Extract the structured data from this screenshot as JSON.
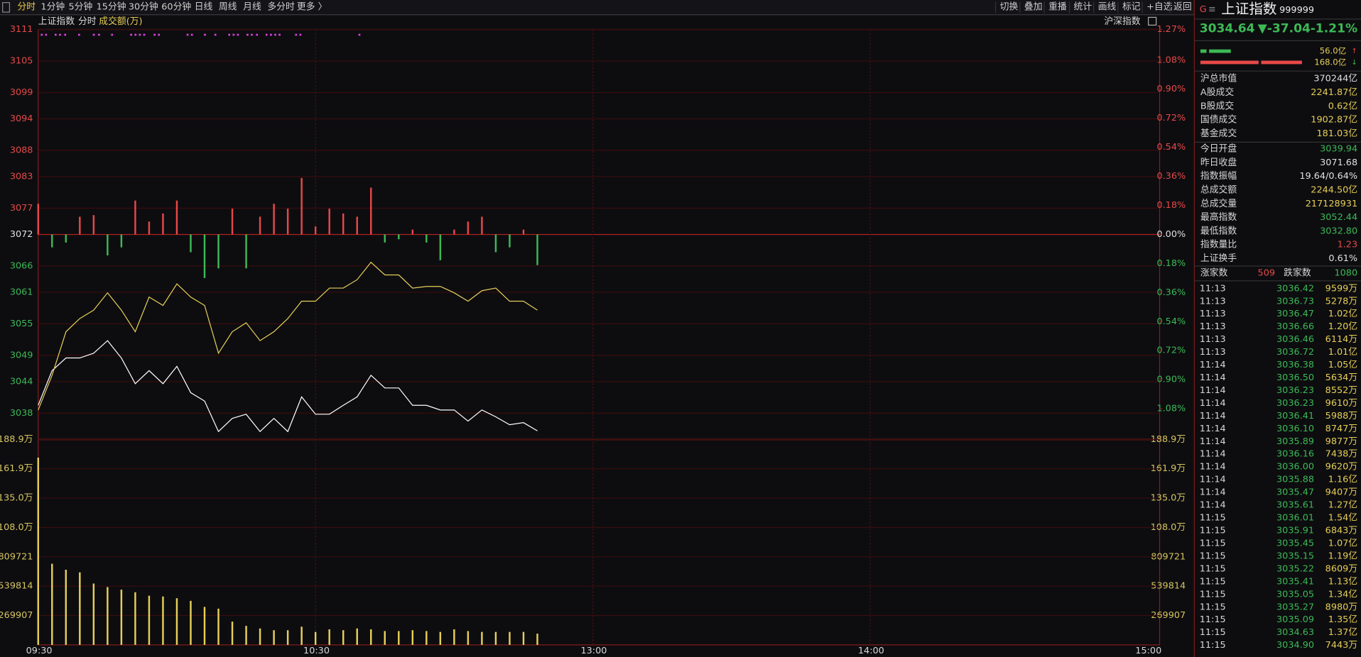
{
  "toolbar": {
    "periods": [
      "分时",
      "1分钟",
      "5分钟",
      "15分钟",
      "30分钟",
      "60分钟",
      "日线",
      "周线",
      "月线",
      "多分时",
      "更多 〉"
    ],
    "actions": [
      "切换",
      "叠加",
      "重播",
      "统计",
      "画线",
      "标记",
      "+自选",
      "返回"
    ]
  },
  "chart_data": [
    {
      "type": "line",
      "title": "上证指数",
      "subtitle": "分时",
      "annotations": [
        "沪深指数"
      ],
      "x": [
        0,
        3,
        6,
        9,
        12,
        15,
        18,
        21,
        24,
        27,
        30,
        33,
        36,
        39,
        42,
        45,
        48,
        51,
        54,
        57,
        60,
        63,
        66,
        69,
        72,
        75,
        78,
        81,
        84,
        87,
        90,
        93,
        96,
        99,
        102,
        105,
        108
      ],
      "xlim": [
        0,
        240
      ],
      "ylim": [
        3033,
        3111
      ],
      "yticks": [
        3111,
        3105,
        3099,
        3094,
        3088,
        3083,
        3077,
        3072,
        3066,
        3061,
        3055,
        3049,
        3044,
        3038
      ],
      "y2lim": [
        -1.27,
        1.27
      ],
      "y2ticks": [
        {
          "value": 1.27,
          "label": "1.27%"
        },
        {
          "value": 1.08,
          "label": "1.08%"
        },
        {
          "value": 0.9,
          "label": "0.90%"
        },
        {
          "value": 0.72,
          "label": "0.72%"
        },
        {
          "value": 0.54,
          "label": "0.54%"
        },
        {
          "value": 0.36,
          "label": "0.36%"
        },
        {
          "value": 0.18,
          "label": "0.18%"
        },
        {
          "value": 0,
          "label": "0.00%"
        },
        {
          "value": -0.18,
          "label": "0.18%"
        },
        {
          "value": -0.36,
          "label": "0.36%"
        },
        {
          "value": -0.54,
          "label": "0.54%"
        },
        {
          "value": -0.72,
          "label": "0.72%"
        },
        {
          "value": -0.9,
          "label": "0.90%"
        },
        {
          "value": -1.08,
          "label": "1.08%"
        }
      ],
      "grid": true,
      "series": [
        {
          "color": "#ffffff",
          "values": [
            3039.5,
            3046.1,
            3048.5,
            3048.5,
            3049.4,
            3051.8,
            3048.5,
            3043.6,
            3046.1,
            3043.6,
            3046.9,
            3041.9,
            3040.3,
            3034.5,
            3037.0,
            3037.8,
            3034.5,
            3037.0,
            3034.5,
            3041.1,
            3037.8,
            3037.8,
            3039.5,
            3041.1,
            3045.2,
            3042.8,
            3042.8,
            3039.5,
            3039.5,
            3038.6,
            3038.6,
            3036.5,
            3038.6,
            3037.3,
            3035.8,
            3036.2,
            3034.64
          ]
        },
        {
          "color": "#e6cf58",
          "values": [
            3038.6,
            3045.2,
            3053.5,
            3056.0,
            3057.6,
            3060.9,
            3057.6,
            3053.5,
            3060.1,
            3058.5,
            3062.6,
            3060.1,
            3058.5,
            3049.4,
            3053.5,
            3055.2,
            3051.8,
            3053.5,
            3056.0,
            3059.3,
            3059.3,
            3061.8,
            3061.8,
            3063.4,
            3066.7,
            3064.3,
            3064.3,
            3061.8,
            3062.1,
            3062.1,
            3060.9,
            3059.3,
            3061.3,
            3061.8,
            3059.3,
            3059.3,
            3057.6
          ]
        },
        {
          "type": "bar",
          "axis": "y2",
          "color": "#e84848",
          "color_down": "#3cba55",
          "values": [
            0.19,
            -0.08,
            -0.05,
            0.11,
            0.12,
            -0.13,
            -0.08,
            0.21,
            0.08,
            0.13,
            0.21,
            -0.11,
            -0.27,
            -0.21,
            0.16,
            -0.21,
            0.11,
            0.19,
            0.16,
            0.35,
            0.05,
            0.16,
            0.13,
            0.11,
            0.29,
            -0.05,
            -0.03,
            0.03,
            -0.05,
            -0.16,
            0.03,
            0.08,
            0.11,
            -0.11,
            -0.08,
            0.03,
            -0.19
          ]
        }
      ]
    },
    {
      "type": "bar",
      "title": "成交额(万)",
      "x": [
        0,
        3,
        6,
        9,
        12,
        15,
        18,
        21,
        24,
        27,
        30,
        33,
        36,
        39,
        42,
        45,
        48,
        51,
        54,
        57,
        60,
        63,
        66,
        69,
        72,
        75,
        78,
        81,
        84,
        87,
        90,
        93,
        96,
        99,
        102,
        105,
        108
      ],
      "xlim": [
        0,
        240
      ],
      "xticks": [
        {
          "value": 0,
          "label": "09:30"
        },
        {
          "value": 60,
          "label": "10:30"
        },
        {
          "value": 120,
          "label": "13:00"
        },
        {
          "value": 180,
          "label": "14:00"
        },
        {
          "value": 240,
          "label": "15:00"
        }
      ],
      "ylim": [
        0,
        1889349
      ],
      "yticks": [
        {
          "value": 1889349,
          "label": "188.9万"
        },
        {
          "value": 1619442,
          "label": "161.9万"
        },
        {
          "value": 1349535,
          "label": "135.0万"
        },
        {
          "value": 1079628,
          "label": "108.0万"
        },
        809721,
        539814,
        269907
      ],
      "grid": true,
      "series": [
        {
          "color": "#e6cf58",
          "values": [
            1722000,
            746000,
            691000,
            667000,
            564000,
            532000,
            508000,
            484000,
            452000,
            445000,
            429000,
            405000,
            349000,
            333000,
            214000,
            175000,
            151000,
            135000,
            135000,
            167000,
            119000,
            143000,
            135000,
            151000,
            143000,
            127000,
            127000,
            135000,
            127000,
            119000,
            143000,
            127000,
            119000,
            119000,
            119000,
            119000,
            103000
          ]
        }
      ]
    }
  ],
  "quote": {
    "flag": "G",
    "name": "上证指数",
    "code": "999999",
    "price": "3034.64",
    "change": "▼-37.04",
    "change_pct": "-1.21%",
    "buy_amount": "56.0亿",
    "sell_amount": "168.0亿"
  },
  "stats": [
    {
      "label": "沪总市值",
      "value": "370244亿"
    },
    {
      "label": "A股成交",
      "value": "2241.87亿"
    },
    {
      "label": "B股成交",
      "value": "0.62亿"
    },
    {
      "label": "国债成交",
      "value": "1902.87亿"
    },
    {
      "label": "基金成交",
      "value": "181.03亿"
    },
    {
      "label": "今日开盘",
      "value": "3039.94"
    },
    {
      "label": "昨日收盘",
      "value": "3071.68"
    },
    {
      "label": "指数振幅",
      "value": "19.64/0.64%"
    },
    {
      "label": "总成交额",
      "value": "2244.50亿"
    },
    {
      "label": "总成交量",
      "value": "217128931"
    },
    {
      "label": "最高指数",
      "value": "3052.44"
    },
    {
      "label": "最低指数",
      "value": "3032.80"
    },
    {
      "label": "指数量比",
      "value": "1.23"
    },
    {
      "label": "上证换手",
      "value": "0.61%"
    }
  ],
  "breadth": {
    "up_label": "涨家数",
    "up": "509",
    "down_label": "跌家数",
    "down": "1080"
  },
  "trades": [
    [
      "11:13",
      "3036.42",
      "9599万"
    ],
    [
      "11:13",
      "3036.73",
      "5278万"
    ],
    [
      "11:13",
      "3036.47",
      "1.02亿"
    ],
    [
      "11:13",
      "3036.66",
      "1.20亿"
    ],
    [
      "11:13",
      "3036.46",
      "6114万"
    ],
    [
      "11:13",
      "3036.72",
      "1.01亿"
    ],
    [
      "11:14",
      "3036.38",
      "1.05亿"
    ],
    [
      "11:14",
      "3036.50",
      "5634万"
    ],
    [
      "11:14",
      "3036.23",
      "8552万"
    ],
    [
      "11:14",
      "3036.23",
      "9610万"
    ],
    [
      "11:14",
      "3036.41",
      "5988万"
    ],
    [
      "11:14",
      "3036.10",
      "8747万"
    ],
    [
      "11:14",
      "3035.89",
      "9877万"
    ],
    [
      "11:14",
      "3036.16",
      "7438万"
    ],
    [
      "11:14",
      "3036.00",
      "9620万"
    ],
    [
      "11:14",
      "3035.88",
      "1.16亿"
    ],
    [
      "11:14",
      "3035.47",
      "9407万"
    ],
    [
      "11:14",
      "3035.61",
      "1.27亿"
    ],
    [
      "11:15",
      "3036.01",
      "1.54亿"
    ],
    [
      "11:15",
      "3035.91",
      "6843万"
    ],
    [
      "11:15",
      "3035.45",
      "1.07亿"
    ],
    [
      "11:15",
      "3035.15",
      "1.19亿"
    ],
    [
      "11:15",
      "3035.22",
      "8609万"
    ],
    [
      "11:15",
      "3035.41",
      "1.13亿"
    ],
    [
      "11:15",
      "3035.05",
      "1.34亿"
    ],
    [
      "11:15",
      "3035.27",
      "8980万"
    ],
    [
      "11:15",
      "3035.09",
      "1.35亿"
    ],
    [
      "11:15",
      "3034.63",
      "1.37亿"
    ],
    [
      "11:15",
      "3034.90",
      "7443万"
    ]
  ]
}
